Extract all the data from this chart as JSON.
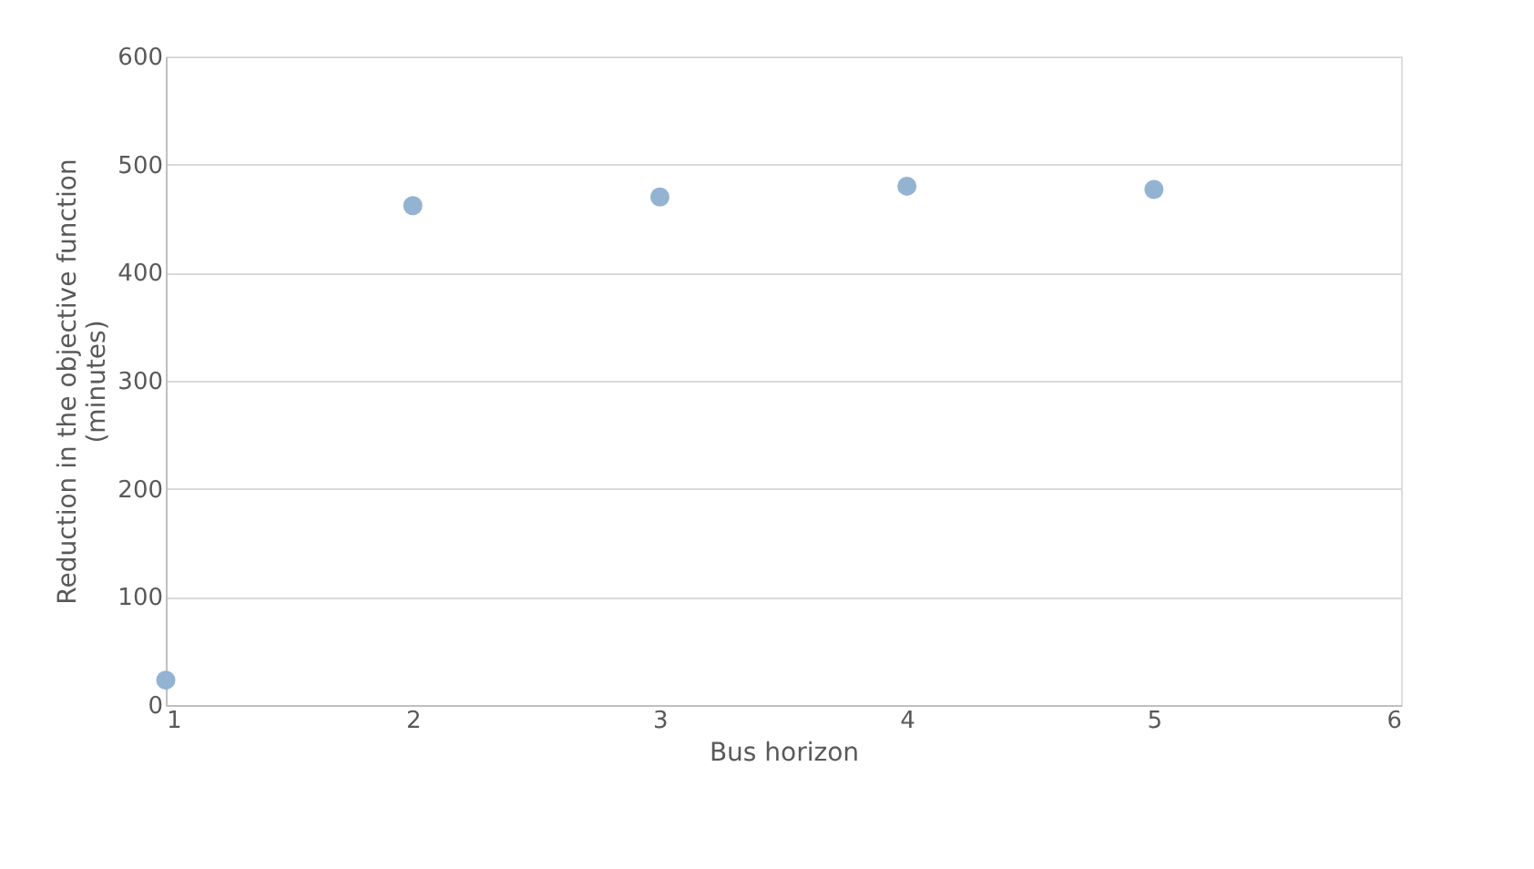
{
  "chart_data": {
    "type": "scatter",
    "xlabel": "Bus horizon",
    "ylabel": "Reduction in the objective function (minutes)",
    "x": [
      1,
      2,
      3,
      4,
      5
    ],
    "series": [
      {
        "color": "#93b3d2",
        "values": [
          23,
          462,
          470,
          480,
          477
        ]
      }
    ],
    "xlim": [
      1,
      6
    ],
    "xticks": [
      1,
      2,
      3,
      4,
      5,
      6
    ],
    "ylim": [
      0,
      600
    ],
    "yticks": [
      0,
      100,
      200,
      300,
      400,
      500,
      600
    ],
    "grid": "y",
    "marker": "circle",
    "legend": false
  }
}
